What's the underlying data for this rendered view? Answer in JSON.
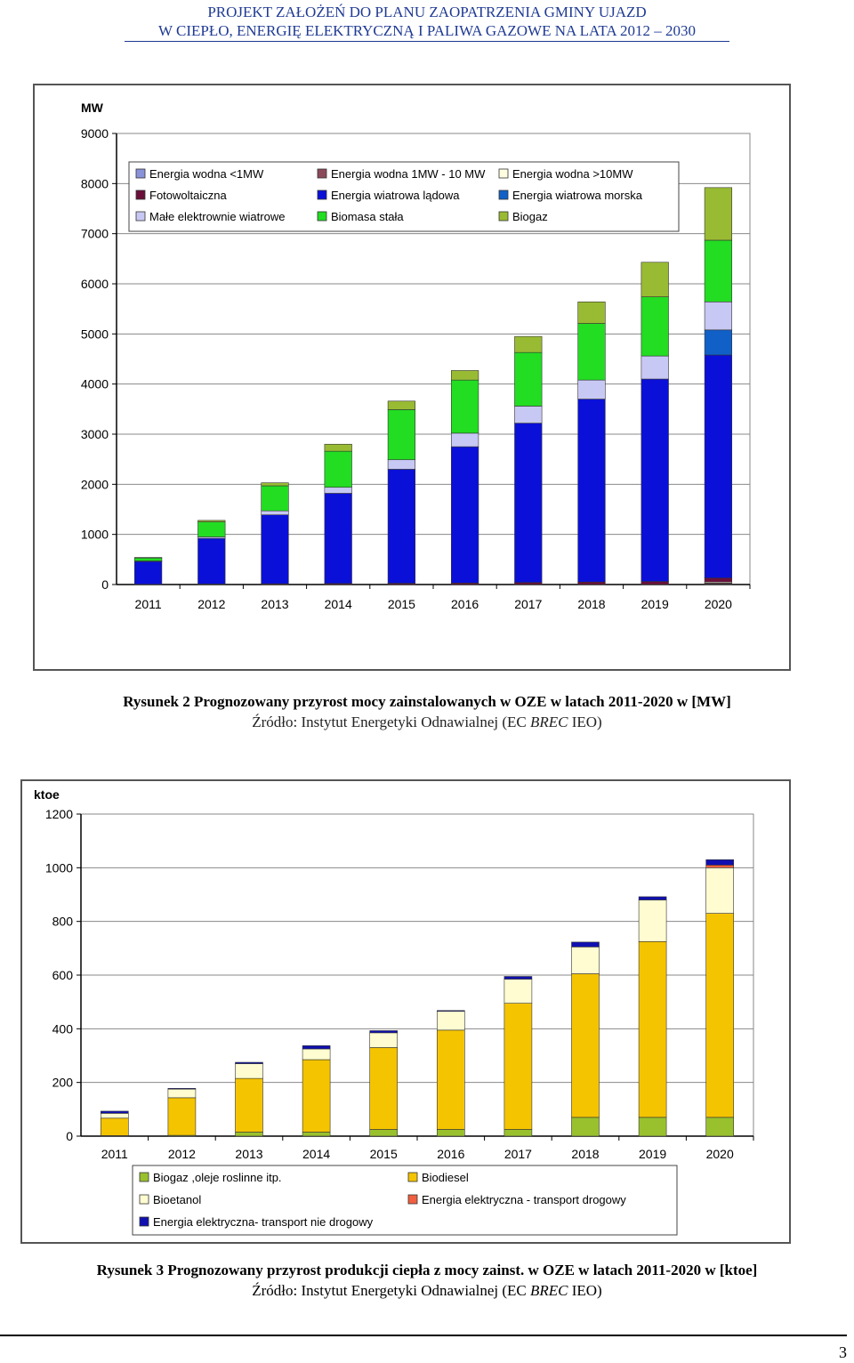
{
  "header": {
    "line1": "PROJEKT ZAŁOŻEŃ DO PLANU ZAOPATRZENIA GMINY UJAZD",
    "line2": "W CIEPŁO, ENERGIĘ ELEKTRYCZNĄ I PALIWA GAZOWE NA LATA 2012 – 2030"
  },
  "figure1": {
    "caption": "Rysunek 2 Prognozowany przyrost mocy zainstalowanych w OZE w latach 2011-2020 w [MW]",
    "source_prefix": "Źródło: Instytut Energetyki Odnawialnej (EC ",
    "source_em": "BREC",
    "source_suffix": " IEO)"
  },
  "figure2": {
    "caption": "Rysunek 3 Prognozowany przyrost produkcji ciepła z mocy zainst. w OZE w latach 2011-2020 w [ktoe]",
    "source_prefix": "Źródło: Instytut Energetyki Odnawialnej (EC ",
    "source_em": "BREC",
    "source_suffix": " IEO)"
  },
  "page_number": "3",
  "chart_data": [
    {
      "type": "bar",
      "stacked": true,
      "title": "",
      "ylabel": "MW",
      "xlabel": "",
      "ylim": [
        0,
        9000
      ],
      "yticks": [
        0,
        1000,
        2000,
        3000,
        4000,
        5000,
        6000,
        7000,
        8000,
        9000
      ],
      "grid": true,
      "legend_position": "top-left",
      "categories": [
        "2011",
        "2012",
        "2013",
        "2014",
        "2015",
        "2016",
        "2017",
        "2018",
        "2019",
        "2020"
      ],
      "series": [
        {
          "name": "Energia wodna <1MW",
          "color": "#8a92d8",
          "values": [
            0,
            0,
            0,
            0,
            0,
            0,
            0,
            0,
            0,
            10
          ]
        },
        {
          "name": "Energia wodna 1MW - 10 MW",
          "color": "#8b4a5a",
          "values": [
            0,
            0,
            0,
            0,
            0,
            0,
            0,
            0,
            0,
            20
          ]
        },
        {
          "name": "Energia wodna >10MW",
          "color": "#fffde0",
          "values": [
            0,
            0,
            0,
            0,
            0,
            0,
            0,
            0,
            0,
            20
          ]
        },
        {
          "name": "Fotowoltaiczna",
          "color": "#6a0f3a",
          "values": [
            5,
            10,
            15,
            20,
            25,
            30,
            40,
            50,
            60,
            80
          ]
        },
        {
          "name": "Energia wiatrowa lądowa",
          "color": "#0a10d8",
          "values": [
            455,
            910,
            1375,
            1800,
            2275,
            2720,
            3180,
            3650,
            4040,
            4450
          ]
        },
        {
          "name": "Energia wiatrowa morska",
          "color": "#1060c8",
          "values": [
            0,
            0,
            0,
            0,
            0,
            0,
            0,
            0,
            0,
            500
          ]
        },
        {
          "name": "Małe elektrownie wiatrowe",
          "color": "#c8c8f4",
          "values": [
            10,
            30,
            80,
            120,
            190,
            270,
            340,
            380,
            460,
            560
          ]
        },
        {
          "name": "Biomasa stała",
          "color": "#22dd22",
          "values": [
            60,
            300,
            500,
            720,
            1000,
            1060,
            1070,
            1130,
            1180,
            1230
          ]
        },
        {
          "name": "Biogaz",
          "color": "#99bb33",
          "values": [
            10,
            30,
            60,
            140,
            170,
            190,
            320,
            430,
            690,
            1050
          ]
        }
      ]
    },
    {
      "type": "bar",
      "stacked": true,
      "title": "",
      "ylabel": "ktoe",
      "xlabel": "",
      "ylim": [
        0,
        1200
      ],
      "yticks": [
        0,
        200,
        400,
        600,
        800,
        1000,
        1200
      ],
      "grid": true,
      "legend_position": "bottom",
      "categories": [
        "2011",
        "2012",
        "2013",
        "2014",
        "2015",
        "2016",
        "2017",
        "2018",
        "2019",
        "2020"
      ],
      "series": [
        {
          "name": "Biogaz ,oleje roslinne itp.",
          "color": "#99c12e",
          "values": [
            2,
            3,
            15,
            15,
            25,
            25,
            25,
            70,
            70,
            70
          ]
        },
        {
          "name": "Biodiesel",
          "color": "#f5c400",
          "values": [
            65,
            140,
            200,
            270,
            305,
            370,
            470,
            535,
            655,
            760
          ]
        },
        {
          "name": "Bioetanol",
          "color": "#fefcd0",
          "values": [
            18,
            32,
            55,
            40,
            55,
            70,
            90,
            100,
            155,
            170
          ]
        },
        {
          "name": "Energia elektryczna - transport drogowy",
          "color": "#f06040",
          "values": [
            0,
            0,
            0,
            0,
            0,
            0,
            0,
            0,
            0,
            10
          ]
        },
        {
          "name": "Energia elektryczna- transport nie drogowy",
          "color": "#1010b0",
          "values": [
            8,
            3,
            5,
            12,
            8,
            3,
            10,
            18,
            12,
            20
          ]
        }
      ]
    }
  ]
}
